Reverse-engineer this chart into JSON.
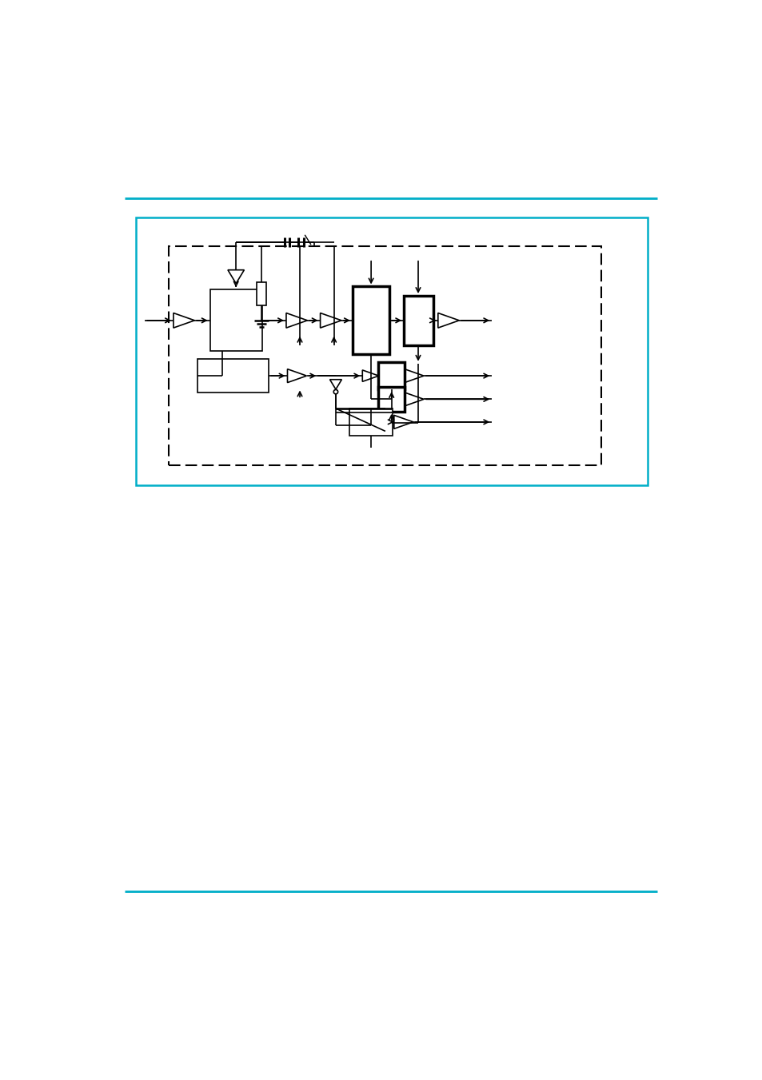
{
  "bg_color": "#ffffff",
  "outer_box_color": "#00aec8",
  "line_color": "#000000",
  "top_line_color": "#00aec8",
  "bottom_line_color": "#00aec8",
  "page_width": 9.54,
  "page_height": 13.51
}
